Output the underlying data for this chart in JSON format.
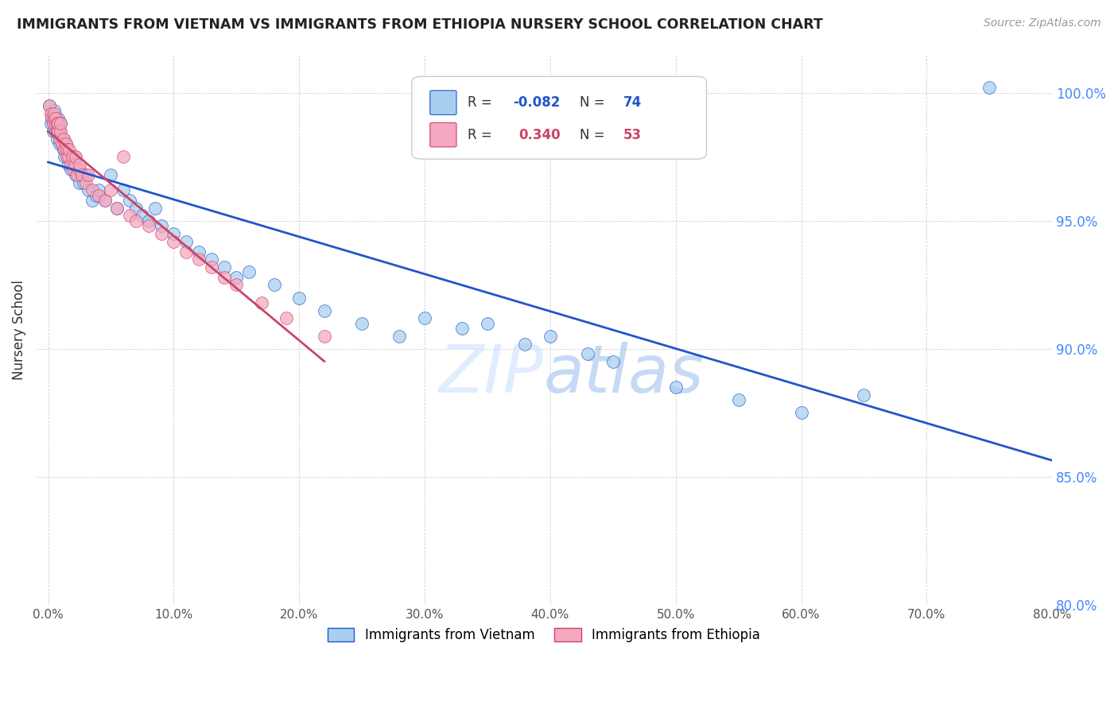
{
  "title": "IMMIGRANTS FROM VIETNAM VS IMMIGRANTS FROM ETHIOPIA NURSERY SCHOOL CORRELATION CHART",
  "source": "Source: ZipAtlas.com",
  "ylabel": "Nursery School",
  "xlim": [
    -1.0,
    80.0
  ],
  "ylim": [
    80.0,
    101.5
  ],
  "yticks": [
    80.0,
    85.0,
    90.0,
    95.0,
    100.0
  ],
  "xticks": [
    0.0,
    10.0,
    20.0,
    30.0,
    40.0,
    50.0,
    60.0,
    70.0,
    80.0
  ],
  "vietnam_color": "#A8D0EE",
  "ethiopia_color": "#F4A8C0",
  "vietnam_line_color": "#2255CC",
  "ethiopia_line_color": "#CC4466",
  "vietnam_R": -0.082,
  "vietnam_N": 74,
  "ethiopia_R": 0.34,
  "ethiopia_N": 53,
  "vn_x": [
    0.1,
    0.2,
    0.3,
    0.3,
    0.4,
    0.4,
    0.5,
    0.5,
    0.5,
    0.6,
    0.6,
    0.7,
    0.7,
    0.8,
    0.8,
    0.9,
    0.9,
    1.0,
    1.0,
    1.1,
    1.2,
    1.2,
    1.3,
    1.4,
    1.5,
    1.6,
    1.7,
    1.8,
    2.0,
    2.1,
    2.2,
    2.3,
    2.5,
    2.6,
    2.8,
    3.0,
    3.2,
    3.5,
    3.8,
    4.0,
    4.5,
    5.0,
    5.5,
    6.0,
    6.5,
    7.0,
    7.5,
    8.0,
    8.5,
    9.0,
    10.0,
    11.0,
    12.0,
    13.0,
    14.0,
    15.0,
    16.0,
    18.0,
    20.0,
    22.0,
    25.0,
    28.0,
    30.0,
    33.0,
    35.0,
    38.0,
    40.0,
    43.0,
    45.0,
    50.0,
    55.0,
    60.0,
    65.0,
    75.0
  ],
  "vn_y": [
    99.5,
    98.8,
    99.0,
    99.2,
    98.5,
    99.0,
    98.8,
    99.0,
    99.3,
    98.5,
    99.0,
    98.2,
    98.8,
    98.5,
    99.0,
    98.0,
    98.5,
    98.2,
    98.8,
    98.0,
    97.8,
    98.2,
    97.5,
    98.0,
    97.8,
    97.2,
    97.5,
    97.0,
    97.2,
    97.5,
    96.8,
    97.0,
    96.5,
    96.8,
    96.5,
    96.8,
    96.2,
    95.8,
    96.0,
    96.2,
    95.8,
    96.8,
    95.5,
    96.2,
    95.8,
    95.5,
    95.2,
    95.0,
    95.5,
    94.8,
    94.5,
    94.2,
    93.8,
    93.5,
    93.2,
    92.8,
    93.0,
    92.5,
    92.0,
    91.5,
    91.0,
    90.5,
    91.2,
    90.8,
    91.0,
    90.2,
    90.5,
    89.8,
    89.5,
    88.5,
    88.0,
    87.5,
    88.2,
    100.2
  ],
  "et_x": [
    0.1,
    0.2,
    0.3,
    0.4,
    0.5,
    0.5,
    0.6,
    0.6,
    0.7,
    0.7,
    0.8,
    0.8,
    0.9,
    1.0,
    1.0,
    1.1,
    1.2,
    1.3,
    1.4,
    1.5,
    1.5,
    1.6,
    1.7,
    1.8,
    1.9,
    2.0,
    2.1,
    2.2,
    2.3,
    2.5,
    2.5,
    2.7,
    3.0,
    3.2,
    3.5,
    4.0,
    4.5,
    5.0,
    5.5,
    6.0,
    6.5,
    7.0,
    8.0,
    9.0,
    10.0,
    11.0,
    12.0,
    13.0,
    14.0,
    15.0,
    17.0,
    19.0,
    22.0
  ],
  "et_y": [
    99.5,
    99.2,
    99.0,
    98.8,
    99.0,
    99.2,
    98.8,
    99.0,
    98.5,
    98.8,
    98.5,
    98.8,
    98.2,
    98.5,
    98.8,
    98.0,
    98.2,
    97.8,
    98.0,
    97.5,
    97.8,
    97.5,
    97.8,
    97.2,
    97.5,
    97.0,
    97.2,
    97.5,
    96.8,
    97.0,
    97.2,
    96.8,
    96.5,
    96.8,
    96.2,
    96.0,
    95.8,
    96.2,
    95.5,
    97.5,
    95.2,
    95.0,
    94.8,
    94.5,
    94.2,
    93.8,
    93.5,
    93.2,
    92.8,
    92.5,
    91.8,
    91.2,
    90.5
  ],
  "watermark_text": "ZIPatlas"
}
